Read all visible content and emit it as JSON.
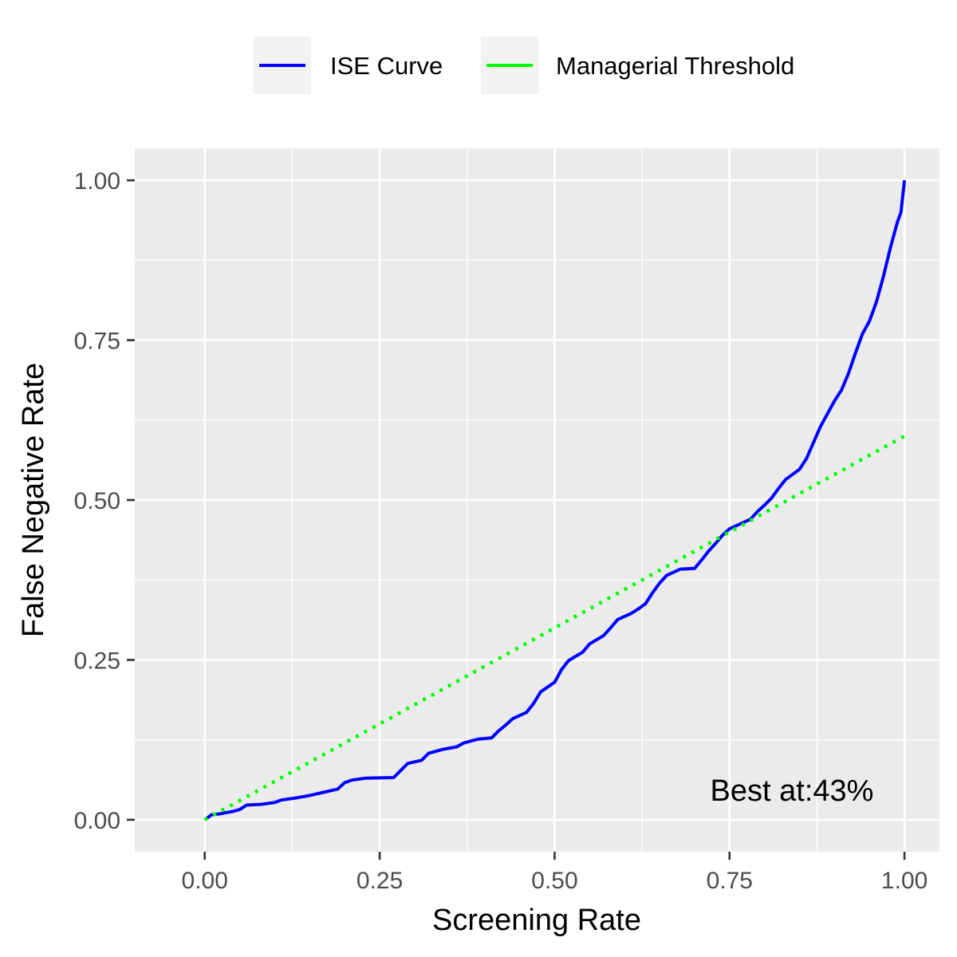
{
  "chart_data": {
    "type": "line",
    "title": "",
    "xlabel": "Screening Rate",
    "ylabel": "False Negative Rate",
    "xlim": [
      -0.1,
      1.05
    ],
    "ylim": [
      -0.05,
      1.05
    ],
    "x_ticks": [
      0,
      0.25,
      0.5,
      0.75,
      1
    ],
    "x_tick_labels": [
      "0.00",
      "0.25",
      "0.50",
      "0.75",
      "1.00"
    ],
    "y_ticks": [
      0,
      0.25,
      0.5,
      0.75,
      1
    ],
    "y_tick_labels": [
      "0.00",
      "0.25",
      "0.50",
      "0.75",
      "1.00"
    ],
    "grid": true,
    "legend_position": "top",
    "annotation": "Best at:43%",
    "series": [
      {
        "name": "ISE Curve",
        "color": "#0000ff",
        "line_style": "solid",
        "points": [
          [
            0,
            0
          ],
          [
            0.005,
            0.004
          ],
          [
            0.01,
            0.008
          ],
          [
            0.02,
            0.009
          ],
          [
            0.03,
            0.011
          ],
          [
            0.04,
            0.013
          ],
          [
            0.05,
            0.016
          ],
          [
            0.06,
            0.023
          ],
          [
            0.08,
            0.024
          ],
          [
            0.1,
            0.027
          ],
          [
            0.11,
            0.031
          ],
          [
            0.13,
            0.034
          ],
          [
            0.15,
            0.038
          ],
          [
            0.17,
            0.043
          ],
          [
            0.19,
            0.048
          ],
          [
            0.2,
            0.058
          ],
          [
            0.21,
            0.062
          ],
          [
            0.23,
            0.065
          ],
          [
            0.27,
            0.066
          ],
          [
            0.28,
            0.077
          ],
          [
            0.29,
            0.088
          ],
          [
            0.31,
            0.093
          ],
          [
            0.32,
            0.104
          ],
          [
            0.34,
            0.11
          ],
          [
            0.36,
            0.114
          ],
          [
            0.37,
            0.12
          ],
          [
            0.39,
            0.126
          ],
          [
            0.41,
            0.128
          ],
          [
            0.42,
            0.139
          ],
          [
            0.43,
            0.148
          ],
          [
            0.44,
            0.158
          ],
          [
            0.46,
            0.168
          ],
          [
            0.47,
            0.182
          ],
          [
            0.48,
            0.2
          ],
          [
            0.5,
            0.215
          ],
          [
            0.51,
            0.235
          ],
          [
            0.52,
            0.249
          ],
          [
            0.54,
            0.262
          ],
          [
            0.55,
            0.275
          ],
          [
            0.57,
            0.288
          ],
          [
            0.58,
            0.3
          ],
          [
            0.59,
            0.313
          ],
          [
            0.61,
            0.323
          ],
          [
            0.62,
            0.33
          ],
          [
            0.63,
            0.338
          ],
          [
            0.64,
            0.355
          ],
          [
            0.65,
            0.37
          ],
          [
            0.66,
            0.382
          ],
          [
            0.68,
            0.392
          ],
          [
            0.7,
            0.393
          ],
          [
            0.71,
            0.406
          ],
          [
            0.72,
            0.42
          ],
          [
            0.73,
            0.432
          ],
          [
            0.74,
            0.445
          ],
          [
            0.75,
            0.455
          ],
          [
            0.76,
            0.46
          ],
          [
            0.78,
            0.47
          ],
          [
            0.79,
            0.482
          ],
          [
            0.8,
            0.492
          ],
          [
            0.81,
            0.503
          ],
          [
            0.82,
            0.518
          ],
          [
            0.83,
            0.532
          ],
          [
            0.84,
            0.54
          ],
          [
            0.85,
            0.548
          ],
          [
            0.86,
            0.565
          ],
          [
            0.87,
            0.59
          ],
          [
            0.88,
            0.615
          ],
          [
            0.89,
            0.635
          ],
          [
            0.9,
            0.655
          ],
          [
            0.91,
            0.672
          ],
          [
            0.92,
            0.698
          ],
          [
            0.93,
            0.73
          ],
          [
            0.94,
            0.76
          ],
          [
            0.95,
            0.78
          ],
          [
            0.96,
            0.81
          ],
          [
            0.97,
            0.85
          ],
          [
            0.98,
            0.895
          ],
          [
            0.99,
            0.935
          ],
          [
            0.995,
            0.95
          ],
          [
            1,
            1
          ]
        ]
      },
      {
        "name": "Managerial Threshold",
        "color": "#00ff00",
        "line_style": "dotted",
        "points": [
          [
            0,
            0
          ],
          [
            1,
            0.6
          ]
        ]
      }
    ]
  }
}
